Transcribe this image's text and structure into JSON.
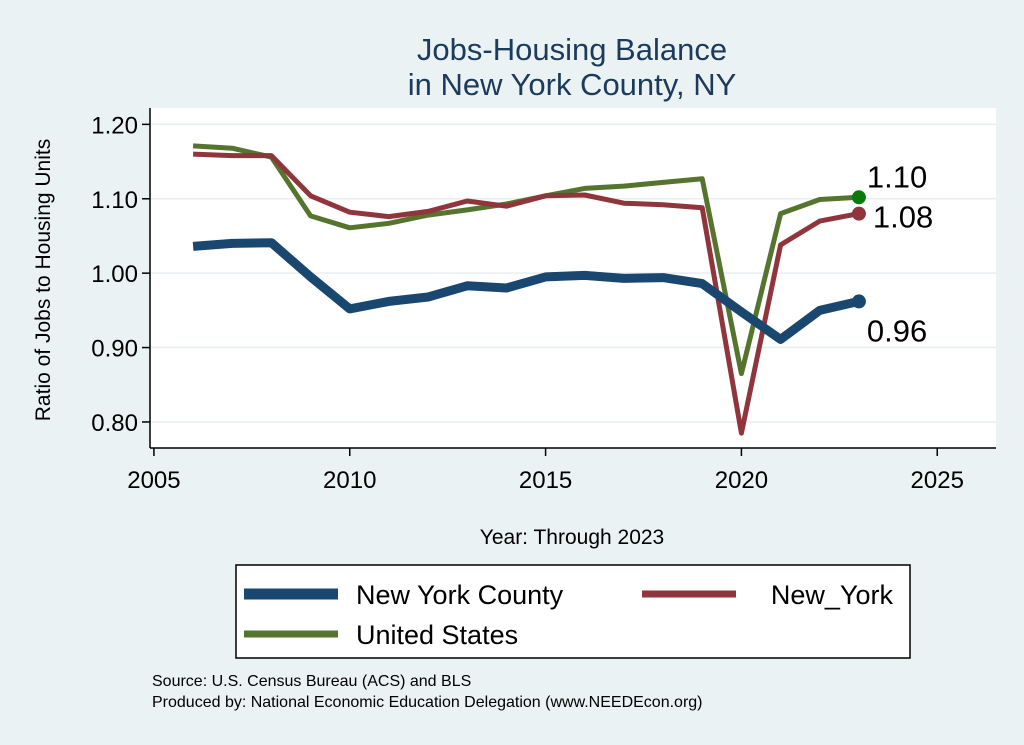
{
  "chart_data": {
    "type": "line",
    "title": [
      "Jobs-Housing Balance",
      "in New York County, NY"
    ],
    "xlabel": "Year: Through 2023",
    "ylabel": "Ratio of Jobs to Housing Units",
    "xlim": [
      2004.9,
      2026.5
    ],
    "ylim": [
      0.765,
      1.222
    ],
    "xticks": [
      2005,
      2010,
      2015,
      2020,
      2025
    ],
    "yticks": [
      0.8,
      0.9,
      1.0,
      1.1,
      1.2
    ],
    "ytick_labels": [
      "0.80",
      "0.90",
      "1.00",
      "1.10",
      "1.20"
    ],
    "grid": "horizontal",
    "legend_position": "bottom",
    "x": [
      2006,
      2007,
      2008,
      2009,
      2010,
      2011,
      2012,
      2013,
      2014,
      2015,
      2016,
      2017,
      2018,
      2019,
      2020,
      2021,
      2022,
      2023
    ],
    "series": [
      {
        "name": "New York County",
        "color": "#1a476f",
        "width": 9,
        "end_label": "0.96",
        "end_marker_color": "#1a476f",
        "values": [
          1.036,
          1.04,
          1.041,
          0.995,
          0.952,
          0.962,
          0.968,
          0.983,
          0.98,
          0.995,
          0.997,
          0.993,
          0.994,
          0.986,
          0.948,
          0.911,
          0.95,
          0.962
        ]
      },
      {
        "name": "New_York",
        "color": "#90353b",
        "width": 5,
        "end_label": "1.08",
        "end_marker_color": "#90353b",
        "values": [
          1.16,
          1.158,
          1.158,
          1.104,
          1.082,
          1.076,
          1.083,
          1.097,
          1.09,
          1.104,
          1.105,
          1.094,
          1.092,
          1.088,
          0.785,
          1.038,
          1.07,
          1.08
        ]
      },
      {
        "name": "United States",
        "color": "#55752f",
        "width": 5,
        "end_label": "1.10",
        "end_marker_color": "#0a7a0a",
        "values": [
          1.171,
          1.168,
          1.156,
          1.077,
          1.061,
          1.067,
          1.078,
          1.085,
          1.093,
          1.104,
          1.114,
          1.117,
          1.122,
          1.127,
          0.865,
          1.08,
          1.099,
          1.102
        ]
      }
    ],
    "source_lines": [
      "Source: U.S. Census Bureau (ACS) and BLS",
      "Produced by: National Economic Education Delegation (www.NEEDEcon.org)"
    ]
  }
}
